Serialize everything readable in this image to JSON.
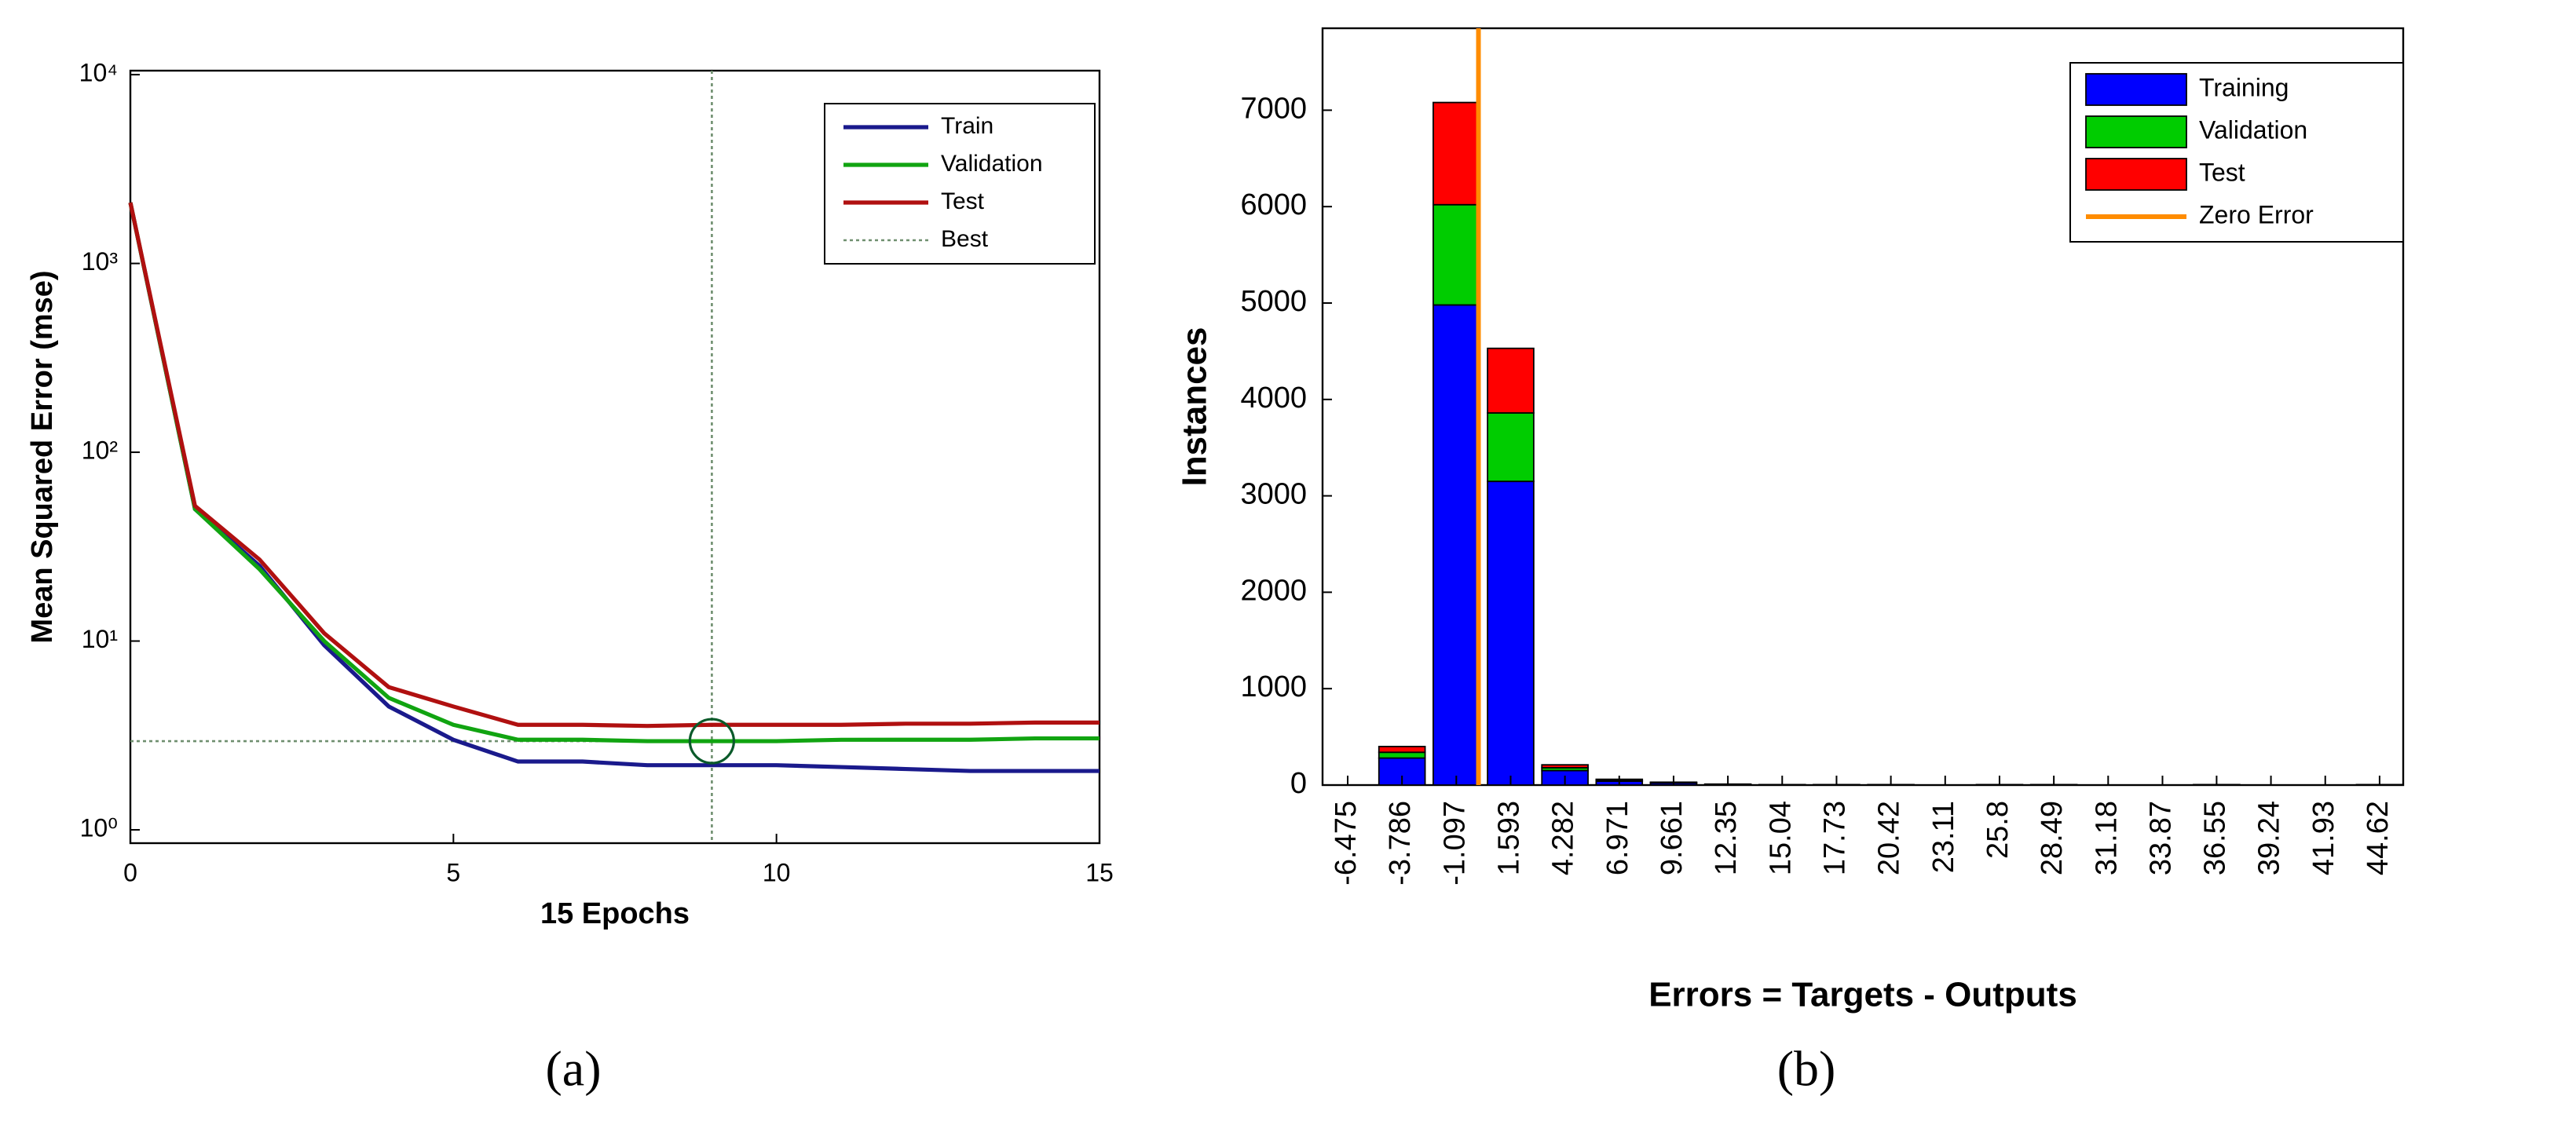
{
  "chart_data": [
    {
      "type": "line",
      "xlabel": "15 Epochs",
      "ylabel": "Mean Squared Error  (mse)",
      "caption": "(a)",
      "x": [
        0,
        1,
        2,
        3,
        4,
        5,
        6,
        7,
        8,
        9,
        10,
        11,
        12,
        13,
        14,
        15
      ],
      "xlim": [
        0,
        15
      ],
      "xticks": [
        0,
        5,
        10,
        15
      ],
      "log_y": true,
      "ylim": [
        0.85,
        10500
      ],
      "yticks": [
        {
          "value": 1,
          "label": "10⁰"
        },
        {
          "value": 10,
          "label": "10¹"
        },
        {
          "value": 100,
          "label": "10²"
        },
        {
          "value": 1000,
          "label": "10³"
        },
        {
          "value": 10000,
          "label": "10⁴"
        }
      ],
      "legend": "upper right",
      "series": [
        {
          "name": "Train",
          "color": "#1a1a8c",
          "values": [
            2100,
            50,
            25,
            9.5,
            4.5,
            3.0,
            2.3,
            2.3,
            2.2,
            2.2,
            2.2,
            2.15,
            2.1,
            2.05,
            2.05,
            2.05
          ]
        },
        {
          "name": "Validation",
          "color": "#11a411",
          "values": [
            2100,
            50,
            24,
            10,
            5,
            3.6,
            3.0,
            3.0,
            2.95,
            2.95,
            2.95,
            3.0,
            3.0,
            3.0,
            3.05,
            3.05
          ]
        },
        {
          "name": "Test",
          "color": "#b01010",
          "values": [
            2100,
            52,
            27,
            11,
            5.7,
            4.5,
            3.6,
            3.6,
            3.55,
            3.6,
            3.6,
            3.6,
            3.65,
            3.65,
            3.7,
            3.7
          ]
        }
      ],
      "best": {
        "name": "Best",
        "color": "#6f8f6f",
        "x": 9,
        "y": 2.95
      }
    },
    {
      "type": "bar",
      "stacked": true,
      "xlabel": "Errors = Targets - Outputs",
      "ylabel": "Instances",
      "caption": "(b)",
      "x": [
        -6.475,
        -3.786,
        -1.097,
        1.593,
        4.282,
        6.971,
        9.661,
        12.35,
        15.04,
        17.73,
        20.42,
        23.11,
        25.8,
        28.49,
        31.18,
        33.87,
        36.55,
        39.24,
        41.93,
        44.62
      ],
      "xlim": [
        -7.72,
        45.79
      ],
      "ylim": [
        0,
        7850
      ],
      "yticks": [
        0,
        1000,
        2000,
        3000,
        4000,
        5000,
        6000,
        7000
      ],
      "legend": "upper right",
      "series": [
        {
          "name": "Training",
          "color": "#0000ff",
          "values": [
            0,
            280,
            4980,
            3150,
            150,
            40,
            20,
            10,
            5,
            5,
            5,
            0,
            5,
            5,
            0,
            0,
            5,
            0,
            0,
            5
          ]
        },
        {
          "name": "Validation",
          "color": "#00cc00",
          "values": [
            0,
            60,
            1040,
            710,
            30,
            10,
            5,
            0,
            0,
            0,
            0,
            0,
            0,
            0,
            0,
            0,
            0,
            0,
            0,
            0
          ]
        },
        {
          "name": "Test",
          "color": "#ff0000",
          "values": [
            0,
            60,
            1060,
            670,
            30,
            10,
            5,
            0,
            0,
            0,
            0,
            0,
            0,
            0,
            0,
            0,
            0,
            0,
            0,
            0
          ]
        }
      ],
      "zero_error": {
        "name": "Zero Error",
        "color": "#ff8c00",
        "x": 0
      }
    }
  ]
}
